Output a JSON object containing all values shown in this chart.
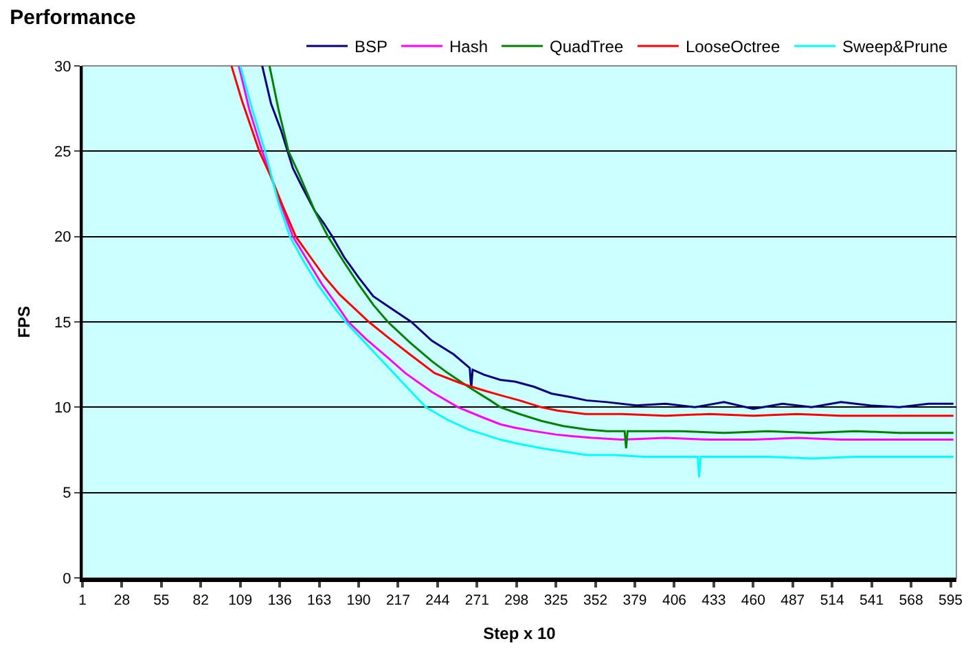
{
  "chart_data": {
    "type": "line",
    "title": "Performance",
    "xlabel": "Step x 10",
    "ylabel": "FPS",
    "xlim": [
      1,
      599
    ],
    "xticks": [
      1,
      28,
      55,
      82,
      109,
      136,
      163,
      190,
      217,
      244,
      271,
      298,
      325,
      352,
      379,
      406,
      433,
      460,
      487,
      514,
      541,
      568,
      595
    ],
    "ylim": [
      0,
      30
    ],
    "yticks": [
      0,
      5,
      10,
      15,
      20,
      25,
      30
    ],
    "grid": "y",
    "legend": "top",
    "marker": "none",
    "line_style": "solid",
    "series": [
      {
        "name": "BSP",
        "color": "#000080",
        "x": [
          124,
          130,
          137,
          145,
          152,
          160,
          166,
          172,
          180,
          190,
          200,
          212,
          226,
          240,
          255,
          266,
          267,
          268,
          276,
          287,
          297,
          310,
          322,
          335,
          346,
          360,
          380,
          400,
          420,
          440,
          460,
          480,
          500,
          520,
          540,
          560,
          580,
          597
        ],
        "values": [
          30,
          27.8,
          26.2,
          24.0,
          22.8,
          21.5,
          20.8,
          20.0,
          18.8,
          17.6,
          16.5,
          15.8,
          15.0,
          13.9,
          13.1,
          12.3,
          11.1,
          12.2,
          11.9,
          11.6,
          11.5,
          11.2,
          10.8,
          10.6,
          10.4,
          10.3,
          10.1,
          10.2,
          10.0,
          10.3,
          9.9,
          10.2,
          10.0,
          10.3,
          10.1,
          10.0,
          10.2,
          10.2
        ]
      },
      {
        "name": "Hash",
        "color": "#ff00ff",
        "x": [
          108,
          115,
          124,
          135,
          145,
          155,
          165,
          175,
          183,
          195,
          210,
          222,
          240,
          258,
          275,
          287,
          297,
          310,
          325,
          336,
          350,
          370,
          400,
          430,
          460,
          490,
          520,
          550,
          580,
          597
        ],
        "values": [
          30,
          27.5,
          25.0,
          22.3,
          20.0,
          18.6,
          17.2,
          16.0,
          15.0,
          14.0,
          12.9,
          12.0,
          10.9,
          10.0,
          9.4,
          9.0,
          8.8,
          8.6,
          8.4,
          8.3,
          8.2,
          8.1,
          8.2,
          8.1,
          8.1,
          8.2,
          8.1,
          8.1,
          8.1,
          8.1
        ]
      },
      {
        "name": "QuadTree",
        "color": "#008000",
        "x": [
          129,
          135,
          142,
          150,
          160,
          169,
          180,
          190,
          200,
          210,
          225,
          240,
          251,
          265,
          280,
          287,
          300,
          315,
          330,
          346,
          360,
          372,
          373,
          374,
          390,
          410,
          440,
          470,
          500,
          530,
          560,
          597
        ],
        "values": [
          30,
          27.5,
          25.0,
          23.5,
          21.5,
          20.0,
          18.5,
          17.2,
          16.0,
          15.0,
          13.8,
          12.7,
          12.0,
          11.2,
          10.4,
          10.0,
          9.6,
          9.2,
          8.9,
          8.7,
          8.6,
          8.6,
          7.6,
          8.6,
          8.6,
          8.6,
          8.5,
          8.6,
          8.5,
          8.6,
          8.5,
          8.5
        ]
      },
      {
        "name": "LooseOctree",
        "color": "#ff0000",
        "x": [
          103,
          110,
          116,
          122,
          130,
          138,
          147,
          157,
          167,
          177,
          187,
          197,
          210,
          225,
          242,
          260,
          275,
          287,
          300,
          315,
          326,
          345,
          370,
          400,
          430,
          460,
          490,
          520,
          550,
          580,
          597
        ],
        "values": [
          30,
          28.0,
          26.5,
          25.0,
          23.5,
          21.8,
          20.0,
          18.8,
          17.6,
          16.6,
          15.8,
          15.0,
          14.1,
          13.1,
          12.0,
          11.4,
          11.0,
          10.7,
          10.4,
          10.0,
          9.8,
          9.6,
          9.6,
          9.5,
          9.6,
          9.5,
          9.6,
          9.5,
          9.5,
          9.5,
          9.5
        ]
      },
      {
        "name": "Sweep&Prune",
        "color": "#00ffff",
        "x": [
          109,
          117,
          126,
          135,
          143,
          152,
          162,
          172,
          181,
          192,
          203,
          214,
          225,
          236,
          250,
          265,
          287,
          297,
          315,
          330,
          346,
          365,
          385,
          405,
          422,
          423,
          424,
          440,
          470,
          500,
          530,
          560,
          597
        ],
        "values": [
          30,
          27.5,
          25.0,
          22.0,
          20.0,
          18.6,
          17.2,
          16.0,
          15.0,
          14.0,
          13.0,
          12.0,
          11.0,
          10.0,
          9.3,
          8.7,
          8.1,
          7.9,
          7.6,
          7.4,
          7.2,
          7.2,
          7.1,
          7.1,
          7.1,
          5.9,
          7.1,
          7.1,
          7.1,
          7.0,
          7.1,
          7.1,
          7.1
        ]
      }
    ]
  }
}
